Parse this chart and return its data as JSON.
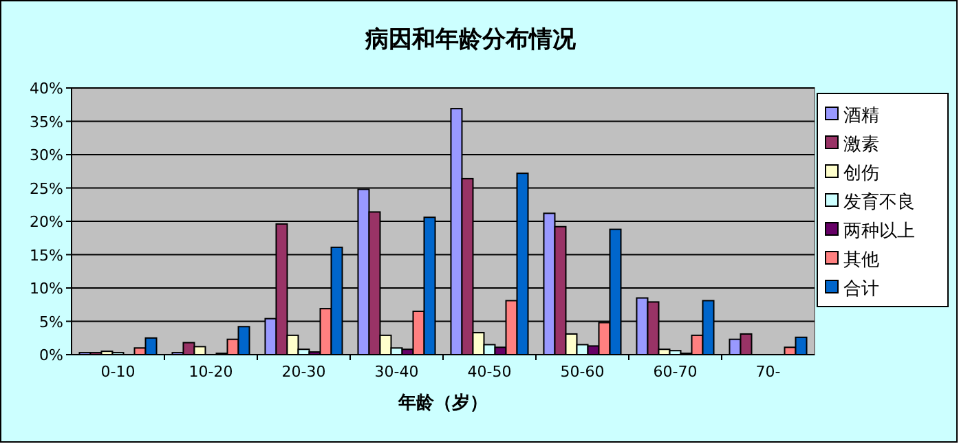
{
  "chart_data": {
    "type": "bar",
    "title": "病因和年龄分布情况",
    "xlabel": "年龄（岁）",
    "categories": [
      "0-10",
      "10-20",
      "20-30",
      "30-40",
      "40-50",
      "50-60",
      "60-70",
      "70-"
    ],
    "series": [
      {
        "name": "酒精",
        "color": "#9999ff",
        "values": [
          0.3,
          0.3,
          5.4,
          24.8,
          36.9,
          21.2,
          8.5,
          2.3
        ]
      },
      {
        "name": "激素",
        "color": "#993366",
        "values": [
          0.3,
          1.8,
          19.6,
          21.4,
          26.4,
          19.2,
          7.9,
          3.1
        ]
      },
      {
        "name": "创伤",
        "color": "#ffffcc",
        "values": [
          0.5,
          1.2,
          2.9,
          2.9,
          3.3,
          3.1,
          0.8,
          null
        ]
      },
      {
        "name": "发育不良",
        "color": "#ccffff",
        "values": [
          0.3,
          0,
          0.8,
          1.0,
          1.5,
          1.5,
          0.6,
          0
        ]
      },
      {
        "name": "两种以上",
        "color": "#660066",
        "values": [
          0,
          0.2,
          0.4,
          0.8,
          1.1,
          1.3,
          0.2,
          0
        ]
      },
      {
        "name": "其他",
        "color": "#ff8080",
        "values": [
          1.0,
          2.3,
          6.9,
          6.5,
          8.1,
          4.8,
          2.9,
          1.1
        ]
      },
      {
        "name": "合计",
        "color": "#0066cc",
        "values": [
          2.5,
          4.2,
          16.1,
          20.6,
          27.2,
          18.8,
          8.1,
          2.6
        ]
      }
    ],
    "ylim": [
      0,
      40
    ],
    "yticks": [
      {
        "value": 0,
        "label": "0%"
      },
      {
        "value": 5,
        "label": "5%"
      },
      {
        "value": 10,
        "label": "10%"
      },
      {
        "value": 15,
        "label": "15%"
      },
      {
        "value": 20,
        "label": "20%"
      },
      {
        "value": 25,
        "label": "25%"
      },
      {
        "value": 30,
        "label": "30%"
      },
      {
        "value": 35,
        "label": "35%"
      },
      {
        "value": 40,
        "label": "40%"
      }
    ],
    "grid": "y",
    "legend": "right"
  }
}
